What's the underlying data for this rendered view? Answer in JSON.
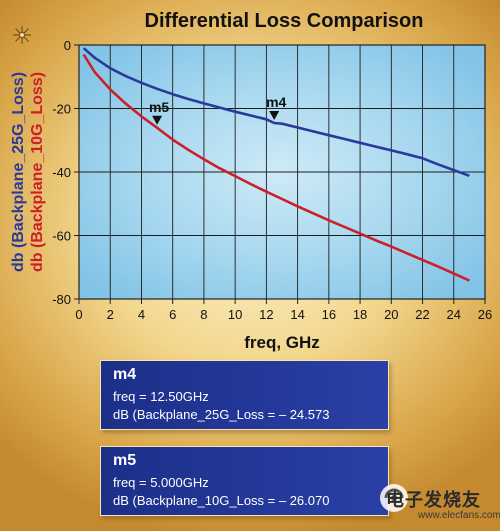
{
  "chart_data": {
    "type": "line",
    "title": "Differential Loss Comparison",
    "xlabel": "freq, GHz",
    "ylabel_series": [
      "db (Backplane_25G_Loss)",
      "db (Backplane_10G_Loss)"
    ],
    "xlim": [
      0,
      26
    ],
    "ylim": [
      -80,
      0
    ],
    "xticks": [
      0,
      2,
      4,
      6,
      8,
      10,
      12,
      14,
      16,
      18,
      20,
      22,
      24,
      26
    ],
    "yticks": [
      0,
      -20,
      -40,
      -60,
      -80
    ],
    "grid": true,
    "series": [
      {
        "name": "Backplane_25G_Loss",
        "color": "#2a3a9a",
        "x": [
          0.3,
          1,
          2,
          3,
          4,
          5,
          6,
          7,
          8,
          9,
          10,
          11,
          12,
          12.5,
          13,
          14,
          15,
          16,
          17,
          18,
          19,
          20,
          21,
          22,
          23,
          24,
          25
        ],
        "y": [
          -1.0,
          -4.0,
          -7.3,
          -9.8,
          -11.9,
          -13.8,
          -15.5,
          -17.0,
          -18.4,
          -19.7,
          -21.0,
          -22.2,
          -23.4,
          -24.573,
          -24.8,
          -26.0,
          -27.2,
          -28.4,
          -29.6,
          -30.8,
          -32.0,
          -33.2,
          -34.4,
          -35.7,
          -37.6,
          -39.4,
          -41.2
        ]
      },
      {
        "name": "Backplane_10G_Loss",
        "color": "#cc1f2a",
        "x": [
          0.3,
          1,
          2,
          3,
          4,
          5,
          6,
          7,
          8,
          9,
          10,
          11,
          12,
          13,
          14,
          15,
          16,
          17,
          18,
          19,
          20,
          21,
          22,
          23,
          24,
          25
        ],
        "y": [
          -3.0,
          -8.5,
          -14.0,
          -18.5,
          -22.5,
          -26.07,
          -29.8,
          -33.0,
          -36.0,
          -38.8,
          -41.3,
          -43.8,
          -46.2,
          -48.5,
          -50.8,
          -53.0,
          -55.2,
          -57.3,
          -59.4,
          -61.5,
          -63.5,
          -65.6,
          -67.7,
          -69.8,
          -72.0,
          -74.2
        ]
      }
    ],
    "markers": [
      {
        "name": "m4",
        "x": 12.5,
        "y": -24.573,
        "series": "Backplane_25G_Loss"
      },
      {
        "name": "m5",
        "x": 5.0,
        "y": -26.07,
        "series": "Backplane_10G_Loss"
      }
    ]
  },
  "marker_boxes": [
    {
      "name": "m4",
      "freq_line": "freq = 12.50GHz",
      "db_line": "dB (Backplane_25G_Loss = – 24.573"
    },
    {
      "name": "m5",
      "freq_line": "freq = 5.000GHz",
      "db_line": "dB (Backplane_10G_Loss = – 26.070"
    }
  ],
  "watermark": {
    "text": "电子发烧友",
    "url": "www.elecfans.com"
  }
}
